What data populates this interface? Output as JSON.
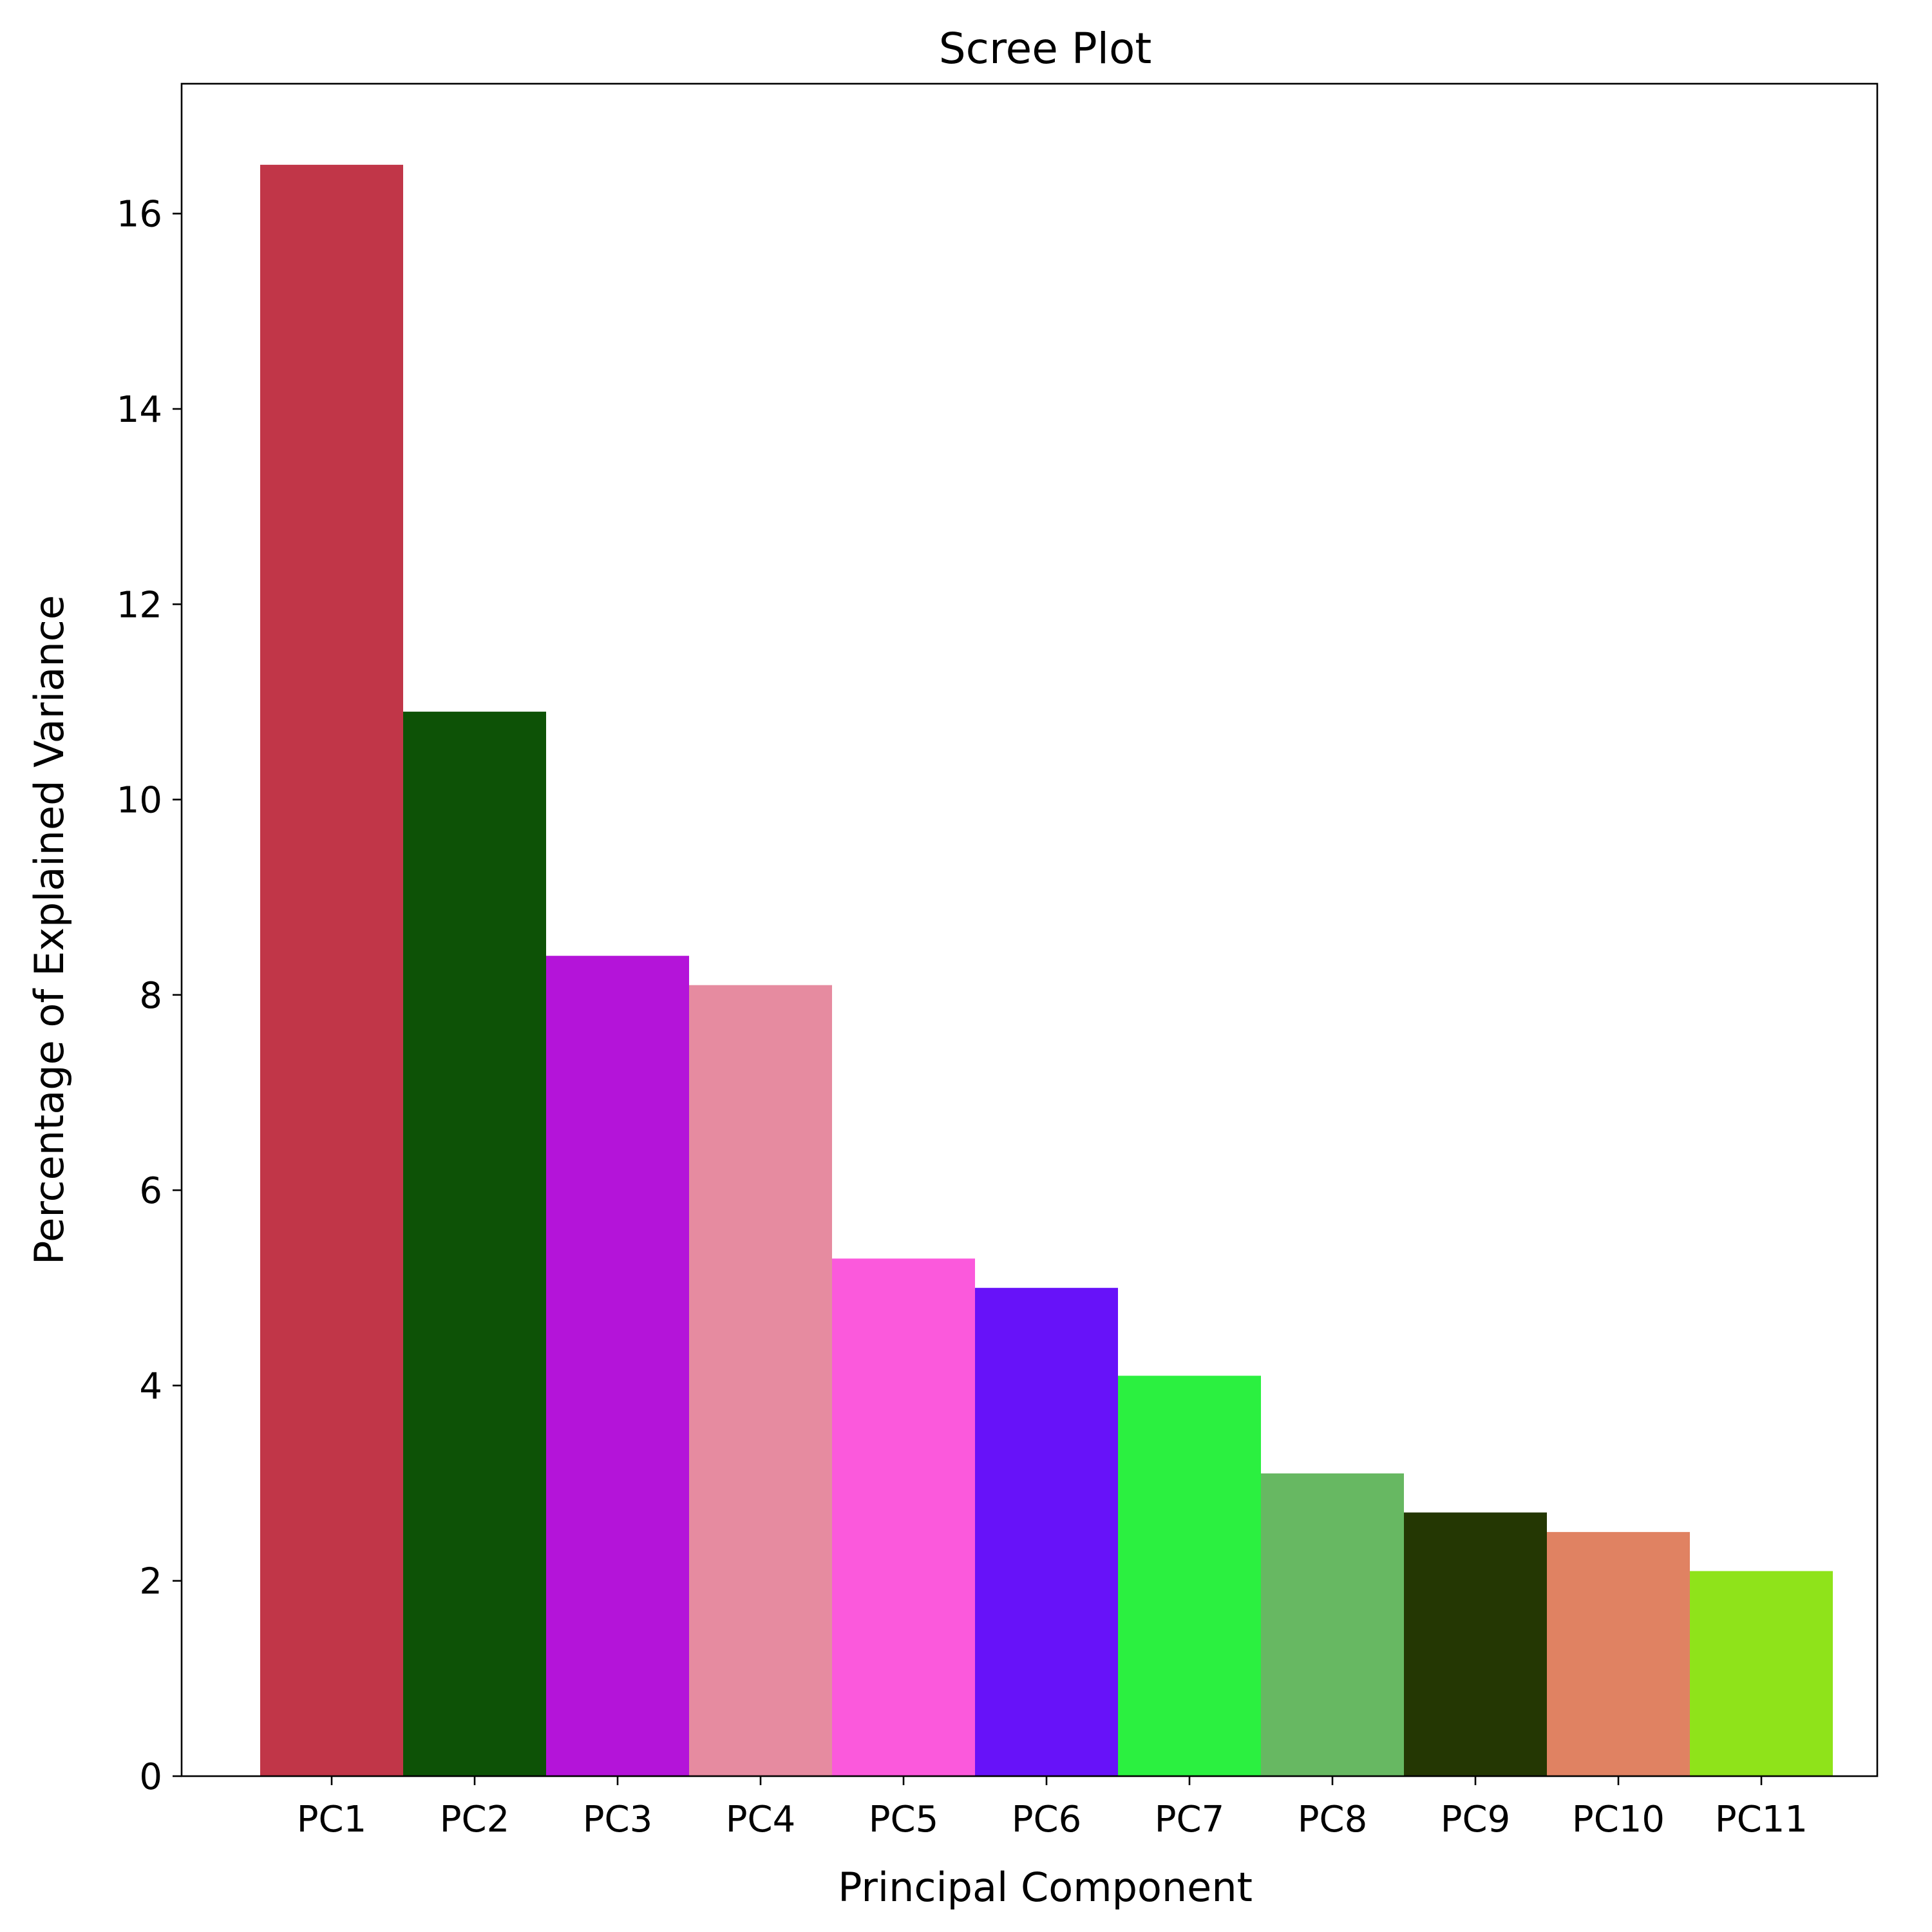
{
  "chart_data": {
    "type": "bar",
    "title": "Scree Plot",
    "xlabel": "Principal Component",
    "ylabel": "Percentage of Explained Variance",
    "categories": [
      "PC1",
      "PC2",
      "PC3",
      "PC4",
      "PC5",
      "PC6",
      "PC7",
      "PC8",
      "PC9",
      "PC10",
      "PC11"
    ],
    "values": [
      16.5,
      10.9,
      8.4,
      8.1,
      5.3,
      5.0,
      4.1,
      3.1,
      2.7,
      2.5,
      2.1
    ],
    "colors": [
      "#c13648",
      "#0d5206",
      "#b414d9",
      "#e68ba0",
      "#fb59dc",
      "#6712f9",
      "#2bf040",
      "#67b862",
      "#243703",
      "#e08262",
      "#8fe31a"
    ],
    "ylim": [
      0,
      17.33
    ],
    "yticks": [
      0,
      2,
      4,
      6,
      8,
      10,
      12,
      14,
      16
    ],
    "grid": false,
    "legend": "none"
  }
}
